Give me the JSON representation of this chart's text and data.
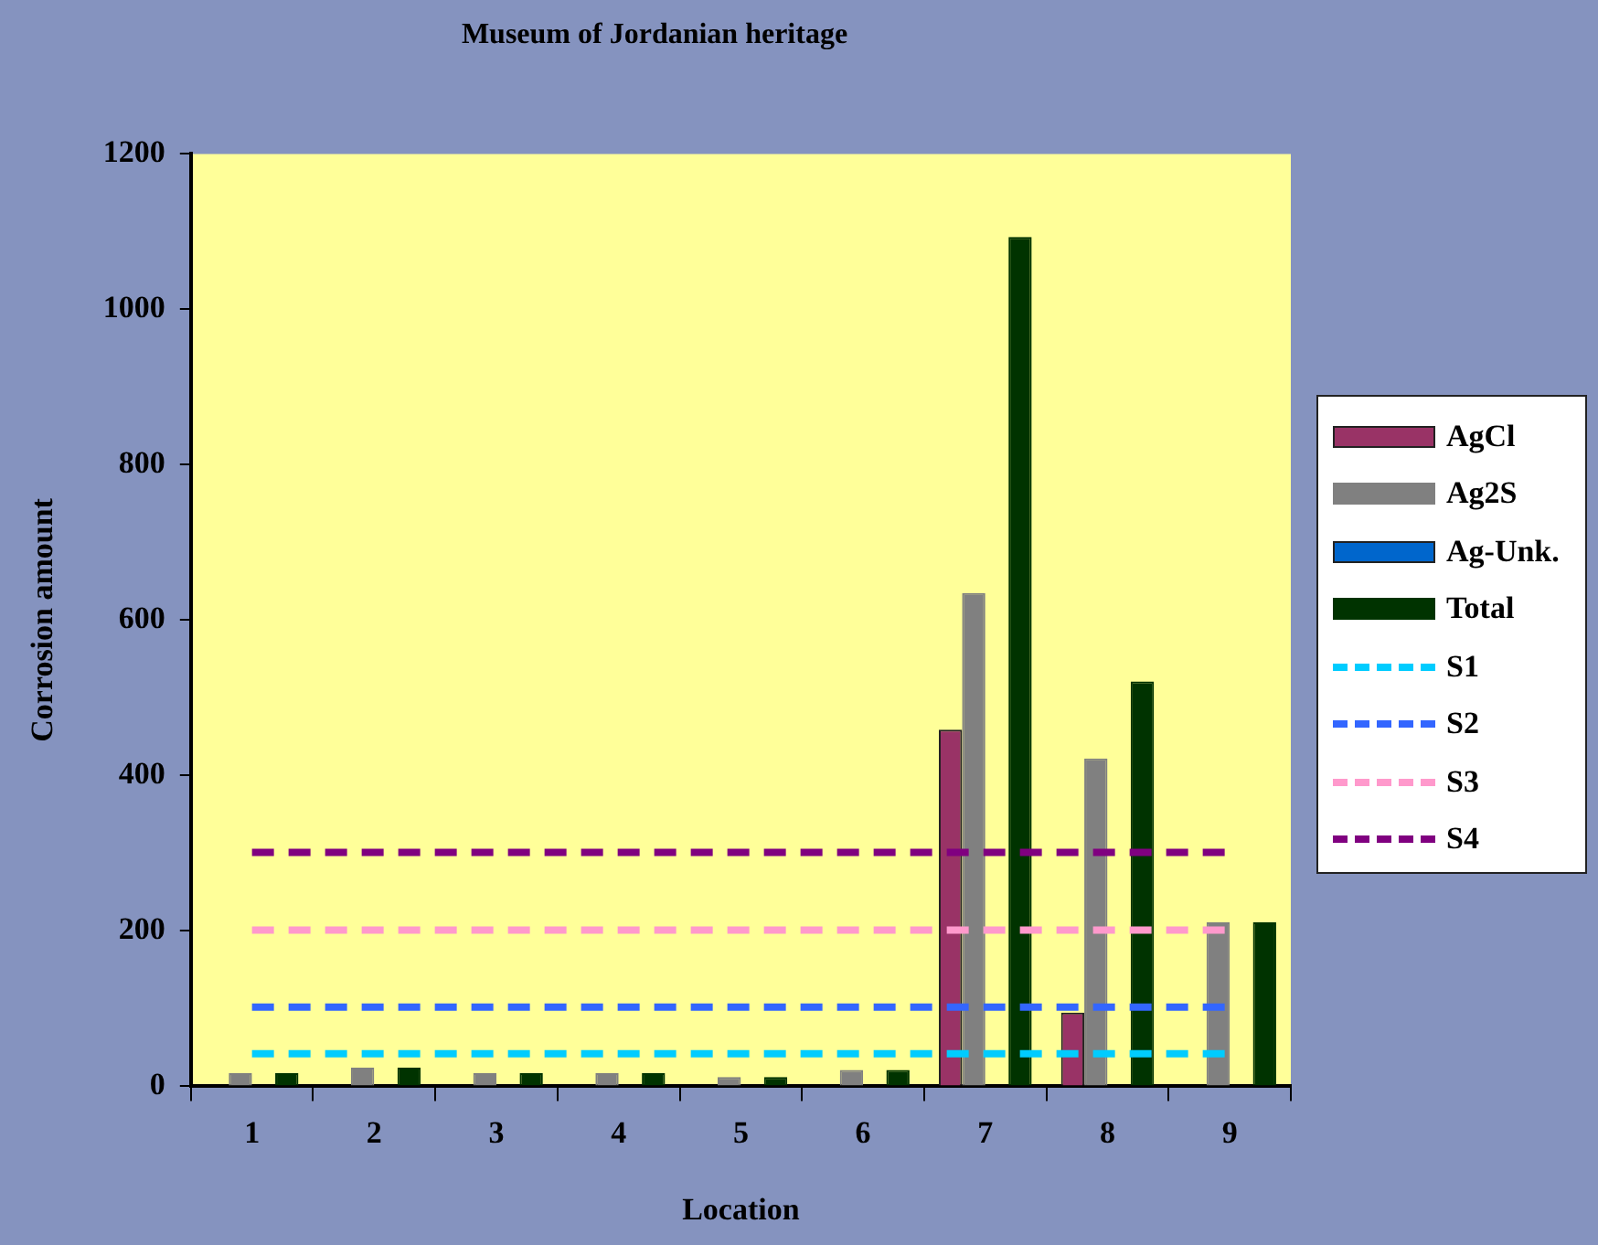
{
  "chart_data": {
    "type": "bar",
    "title": "Museum of Jordanian heritage",
    "xlabel": "Location",
    "ylabel": "Corrosion amount",
    "categories": [
      "1",
      "2",
      "3",
      "4",
      "5",
      "6",
      "7",
      "8",
      "9"
    ],
    "series": [
      {
        "name": "AgCl",
        "color": "#993366",
        "values": [
          null,
          null,
          null,
          null,
          null,
          null,
          459,
          95,
          null
        ]
      },
      {
        "name": "Ag2S",
        "color": "#808080",
        "values": [
          17,
          24,
          17,
          17,
          12,
          21,
          635,
          422,
          211
        ]
      },
      {
        "name": "Ag-Unk.",
        "color": "#0066cc",
        "values": [
          null,
          null,
          null,
          null,
          null,
          null,
          null,
          null,
          null
        ]
      },
      {
        "name": "Total",
        "color": "#003300",
        "values": [
          17,
          24,
          17,
          17,
          12,
          21,
          1093,
          521,
          211
        ]
      },
      {
        "name": "S1",
        "type": "line",
        "color": "#00ccff",
        "values": [
          42,
          42,
          42,
          42,
          42,
          42,
          42,
          42,
          42
        ]
      },
      {
        "name": "S2",
        "type": "line",
        "color": "#3366ff",
        "values": [
          102,
          102,
          102,
          102,
          102,
          102,
          102,
          102,
          102
        ]
      },
      {
        "name": "S3",
        "type": "line",
        "color": "#ff99cc",
        "values": [
          201,
          201,
          201,
          201,
          201,
          201,
          201,
          201,
          201
        ]
      },
      {
        "name": "S4",
        "type": "line",
        "color": "#800080",
        "values": [
          301,
          301,
          301,
          301,
          301,
          301,
          301,
          301,
          301
        ]
      }
    ],
    "ylim": [
      0,
      1200
    ],
    "yticks": [
      0,
      200,
      400,
      600,
      800,
      1000,
      1200
    ],
    "grid": false,
    "legend": "right",
    "marker": "none",
    "line_style": "dashed"
  }
}
